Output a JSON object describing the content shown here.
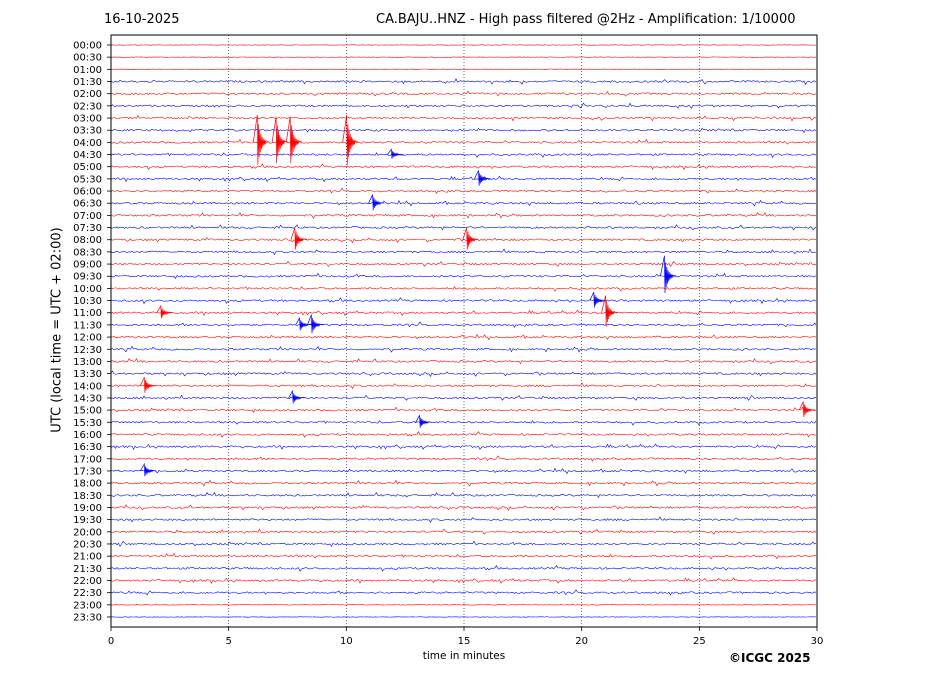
{
  "header": {
    "date": "16-10-2025",
    "title": "CA.BAJU..HNZ - High pass filtered @2Hz - Amplification: 1/10000"
  },
  "footer": {
    "copyright": "©ICGC 2025"
  },
  "chart_data": {
    "type": "line",
    "title": "CA.BAJU..HNZ - High pass filtered @2Hz - Amplification: 1/10000",
    "xlabel": "time in minutes",
    "ylabel": "UTC (local time = UTC + 02:00)",
    "xlim": [
      0,
      30
    ],
    "x_ticks": [
      0,
      5,
      10,
      15,
      20,
      25,
      30
    ],
    "grid": {
      "vertical_dotted": true
    },
    "colors": {
      "trace_a": "#ff0000",
      "trace_b": "#0000ff"
    },
    "rows": [
      {
        "label": "00:00",
        "color": "red"
      },
      {
        "label": "00:30",
        "color": "red"
      },
      {
        "label": "01:00",
        "color": "red"
      },
      {
        "label": "01:30",
        "color": "blue"
      },
      {
        "label": "02:00",
        "color": "red"
      },
      {
        "label": "02:30",
        "color": "blue"
      },
      {
        "label": "03:00",
        "color": "red"
      },
      {
        "label": "03:30",
        "color": "blue"
      },
      {
        "label": "04:00",
        "color": "red"
      },
      {
        "label": "04:30",
        "color": "blue"
      },
      {
        "label": "05:00",
        "color": "red"
      },
      {
        "label": "05:30",
        "color": "blue"
      },
      {
        "label": "06:00",
        "color": "red"
      },
      {
        "label": "06:30",
        "color": "blue"
      },
      {
        "label": "07:00",
        "color": "red"
      },
      {
        "label": "07:30",
        "color": "blue"
      },
      {
        "label": "08:00",
        "color": "red"
      },
      {
        "label": "08:30",
        "color": "blue"
      },
      {
        "label": "09:00",
        "color": "red"
      },
      {
        "label": "09:30",
        "color": "blue"
      },
      {
        "label": "10:00",
        "color": "red"
      },
      {
        "label": "10:30",
        "color": "blue"
      },
      {
        "label": "11:00",
        "color": "red"
      },
      {
        "label": "11:30",
        "color": "blue"
      },
      {
        "label": "12:00",
        "color": "red"
      },
      {
        "label": "12:30",
        "color": "blue"
      },
      {
        "label": "13:00",
        "color": "red"
      },
      {
        "label": "13:30",
        "color": "blue"
      },
      {
        "label": "14:00",
        "color": "red"
      },
      {
        "label": "14:30",
        "color": "blue"
      },
      {
        "label": "15:00",
        "color": "red"
      },
      {
        "label": "15:30",
        "color": "blue"
      },
      {
        "label": "16:00",
        "color": "red"
      },
      {
        "label": "16:30",
        "color": "blue"
      },
      {
        "label": "17:00",
        "color": "red"
      },
      {
        "label": "17:30",
        "color": "blue"
      },
      {
        "label": "18:00",
        "color": "red"
      },
      {
        "label": "18:30",
        "color": "blue"
      },
      {
        "label": "19:00",
        "color": "red"
      },
      {
        "label": "19:30",
        "color": "blue"
      },
      {
        "label": "20:00",
        "color": "red"
      },
      {
        "label": "20:30",
        "color": "blue"
      },
      {
        "label": "21:00",
        "color": "red"
      },
      {
        "label": "21:30",
        "color": "blue"
      },
      {
        "label": "22:00",
        "color": "red"
      },
      {
        "label": "22:30",
        "color": "blue"
      },
      {
        "label": "23:00",
        "color": "red"
      },
      {
        "label": "23:30",
        "color": "blue"
      }
    ],
    "events": [
      {
        "row": "04:00",
        "minute": 6.3,
        "amplitude": 1.6
      },
      {
        "row": "04:00",
        "minute": 7.1,
        "amplitude": 1.5
      },
      {
        "row": "04:00",
        "minute": 7.7,
        "amplitude": 1.5
      },
      {
        "row": "04:00",
        "minute": 10.1,
        "amplitude": 1.6
      },
      {
        "row": "04:30",
        "minute": 12.0,
        "amplitude": 0.3
      },
      {
        "row": "05:30",
        "minute": 15.7,
        "amplitude": 0.5
      },
      {
        "row": "06:30",
        "minute": 11.2,
        "amplitude": 0.5
      },
      {
        "row": "08:00",
        "minute": 7.9,
        "amplitude": 0.7
      },
      {
        "row": "08:00",
        "minute": 15.2,
        "amplitude": 0.7
      },
      {
        "row": "09:30",
        "minute": 23.6,
        "amplitude": 1.2
      },
      {
        "row": "10:30",
        "minute": 20.6,
        "amplitude": 0.5
      },
      {
        "row": "11:00",
        "minute": 21.1,
        "amplitude": 1.0
      },
      {
        "row": "11:00",
        "minute": 2.2,
        "amplitude": 0.4
      },
      {
        "row": "11:30",
        "minute": 8.6,
        "amplitude": 0.6
      },
      {
        "row": "11:30",
        "minute": 8.1,
        "amplitude": 0.4
      },
      {
        "row": "14:00",
        "minute": 1.5,
        "amplitude": 0.5
      },
      {
        "row": "14:30",
        "minute": 7.8,
        "amplitude": 0.4
      },
      {
        "row": "15:00",
        "minute": 29.5,
        "amplitude": 0.5
      },
      {
        "row": "15:30",
        "minute": 13.2,
        "amplitude": 0.4
      },
      {
        "row": "17:30",
        "minute": 1.5,
        "amplitude": 0.4
      }
    ]
  }
}
